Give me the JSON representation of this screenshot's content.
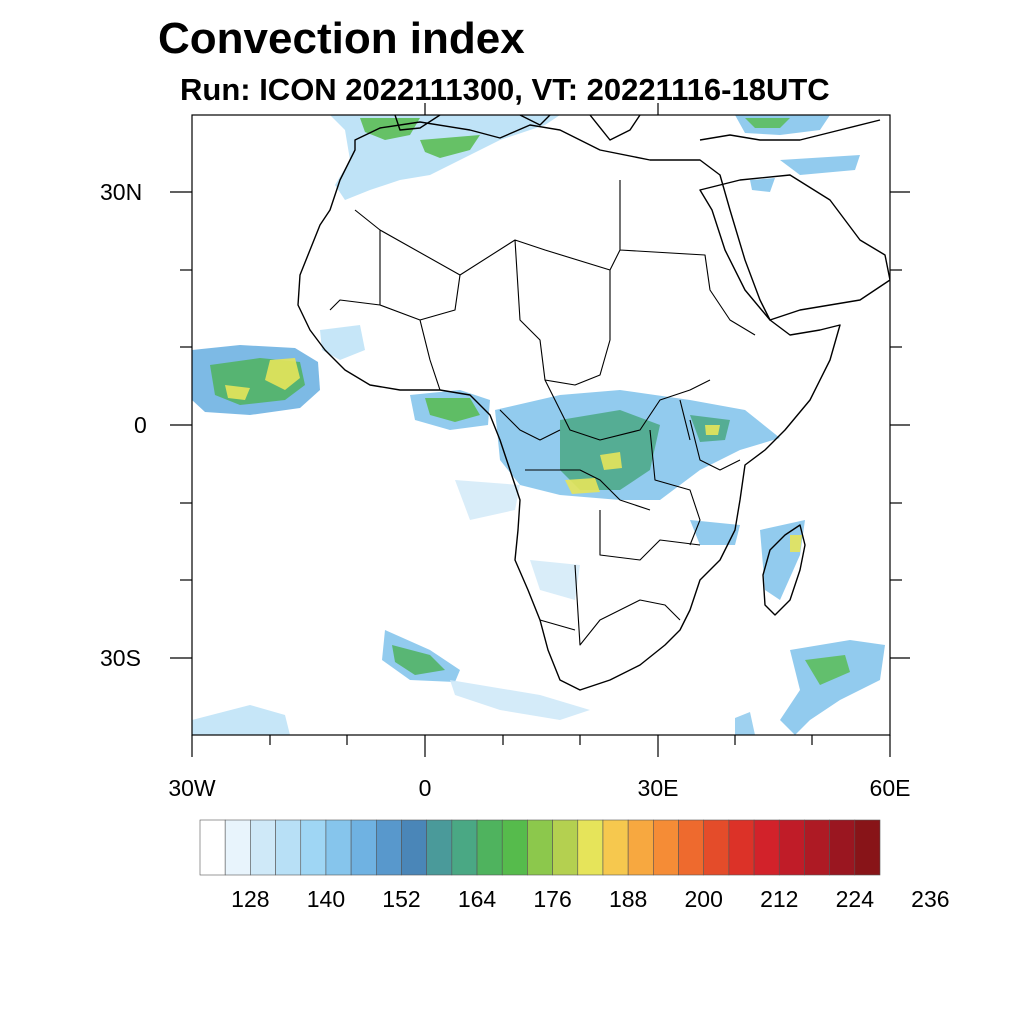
{
  "title": "Convection index",
  "subtitle": "Run: ICON 2022111300,  VT: 20221116-18UTC",
  "map": {
    "lon_range": [
      -30,
      60
    ],
    "lat_range": [
      -40,
      40
    ],
    "lat_labels": [
      "30N",
      "0",
      "30S"
    ],
    "lon_labels": [
      "30W",
      "0",
      "30E",
      "60E"
    ]
  },
  "colorbar": {
    "colors": [
      "#ffffff",
      "#e8f4fc",
      "#cfe9f8",
      "#b8e0f6",
      "#9fd6f4",
      "#86c5ec",
      "#6fb2e2",
      "#5898cc",
      "#4a86b8",
      "#4a9a9a",
      "#4aa884",
      "#4fb35e",
      "#56bb4c",
      "#8cc84c",
      "#b4d050",
      "#e6e45a",
      "#f6c84e",
      "#f7a840",
      "#f58c36",
      "#ee6a2e",
      "#e44c2a",
      "#dc3228",
      "#d2222a",
      "#c01c28",
      "#ae1a24",
      "#9a1620",
      "#881418"
    ],
    "tick_labels": [
      "128",
      "140",
      "152",
      "164",
      "176",
      "188",
      "200",
      "212",
      "224",
      "236"
    ]
  }
}
